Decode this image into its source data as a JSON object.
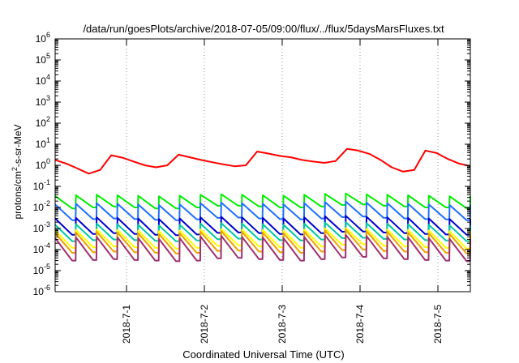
{
  "chart_data": {
    "type": "line",
    "title": "/data/run/goesPlots/archive/2018-07-05/09:00/flux/../flux/5daysMarsFluxes.txt",
    "xlabel": "Coordinated Universal Time (UTC)",
    "ylabel_main": "protons/cm",
    "ylabel_sup": "2",
    "ylabel_rest": "-s-sr-MeV",
    "yscale": "log",
    "ylim_exp": [
      -6,
      6
    ],
    "y_ticks": [
      {
        "base": "10",
        "exp": "6",
        "e": 6
      },
      {
        "base": "10",
        "exp": "5",
        "e": 5
      },
      {
        "base": "10",
        "exp": "4",
        "e": 4
      },
      {
        "base": "10",
        "exp": "3",
        "e": 3
      },
      {
        "base": "10",
        "exp": "2",
        "e": 2
      },
      {
        "base": "10",
        "exp": "1",
        "e": 1
      },
      {
        "base": "10",
        "exp": "0",
        "e": 0
      },
      {
        "base": "10",
        "exp": "-1",
        "e": -1
      },
      {
        "base": "10",
        "exp": "-2",
        "e": -2
      },
      {
        "base": "10",
        "exp": "-3",
        "e": -3
      },
      {
        "base": "10",
        "exp": "-4",
        "e": -4
      },
      {
        "base": "10",
        "exp": "-5",
        "e": -5
      },
      {
        "base": "10",
        "exp": "-6",
        "e": -6
      }
    ],
    "xlim": [
      "2018-06-30T02:00",
      "2018-07-05T10:00"
    ],
    "x_ticks": [
      {
        "label": "2018-7-1",
        "t": "2018-07-01T00:00"
      },
      {
        "label": "2018-7-2",
        "t": "2018-07-02T00:00"
      },
      {
        "label": "2018-7-3",
        "t": "2018-07-03T00:00"
      },
      {
        "label": "2018-7-4",
        "t": "2018-07-04T00:00"
      },
      {
        "label": "2018-7-5",
        "t": "2018-07-05T00:00"
      }
    ],
    "grid": "vertical-at-date-ticks",
    "legend": "none",
    "series": [
      {
        "color": "#ff0000",
        "pattern": "smooth",
        "values": [
          1.8,
          1.2,
          0.7,
          0.4,
          0.6,
          3.0,
          2.3,
          1.5,
          1.0,
          0.8,
          1.0,
          3.2,
          2.4,
          1.8,
          1.4,
          1.1,
          0.9,
          1.0,
          4.5,
          3.6,
          2.8,
          2.4,
          1.8,
          1.5,
          1.3,
          1.6,
          6.0,
          5.0,
          3.5,
          1.8,
          0.8,
          0.5,
          0.6,
          5.0,
          3.8,
          2.0,
          1.2,
          0.9
        ]
      },
      {
        "color": "#00ee00",
        "pattern": "sawtooth",
        "peaks": [
          0.035,
          0.038,
          0.04,
          0.038,
          0.036,
          0.034,
          0.036,
          0.04,
          0.042,
          0.04,
          0.038,
          0.036,
          0.04,
          0.044,
          0.046,
          0.042,
          0.04,
          0.038,
          0.036,
          0.034
        ],
        "troughs": [
          0.009,
          0.01,
          0.011,
          0.01,
          0.009,
          0.009,
          0.01,
          0.012,
          0.012,
          0.011,
          0.01,
          0.01,
          0.011,
          0.013,
          0.014,
          0.012,
          0.011,
          0.01,
          0.01,
          0.009
        ]
      },
      {
        "color": "#1f6fff",
        "pattern": "sawtooth",
        "peaks": [
          0.014,
          0.015,
          0.016,
          0.015,
          0.014,
          0.013,
          0.014,
          0.016,
          0.017,
          0.016,
          0.015,
          0.014,
          0.016,
          0.018,
          0.019,
          0.017,
          0.016,
          0.015,
          0.014,
          0.013
        ],
        "troughs": [
          0.0025,
          0.0028,
          0.003,
          0.0028,
          0.0026,
          0.0025,
          0.0027,
          0.0032,
          0.0033,
          0.003,
          0.0028,
          0.0027,
          0.003,
          0.0035,
          0.0037,
          0.0032,
          0.003,
          0.0028,
          0.0027,
          0.0025
        ]
      },
      {
        "color": "#0000cc",
        "pattern": "sawtooth",
        "peaks": [
          0.003,
          0.0032,
          0.0034,
          0.0032,
          0.003,
          0.0028,
          0.003,
          0.0034,
          0.0036,
          0.0034,
          0.0032,
          0.003,
          0.0034,
          0.0038,
          0.004,
          0.0036,
          0.0034,
          0.0032,
          0.003,
          0.0028
        ],
        "troughs": [
          0.0005,
          0.00055,
          0.0006,
          0.00055,
          0.0005,
          0.00048,
          0.00052,
          0.00062,
          0.00065,
          0.0006,
          0.00055,
          0.00052,
          0.0006,
          0.0007,
          0.00072,
          0.00064,
          0.0006,
          0.00055,
          0.00052,
          0.0005
        ]
      },
      {
        "color": "#00c8a0",
        "pattern": "sawtooth",
        "peaks": [
          0.0015,
          0.0016,
          0.0017,
          0.0016,
          0.0015,
          0.0014,
          0.0015,
          0.0017,
          0.0018,
          0.0017,
          0.0016,
          0.0015,
          0.0017,
          0.0019,
          0.002,
          0.0018,
          0.0017,
          0.0016,
          0.0015,
          0.0014
        ],
        "troughs": [
          0.00025,
          0.00028,
          0.0003,
          0.00028,
          0.00026,
          0.00025,
          0.00027,
          0.00031,
          0.00033,
          0.0003,
          0.00028,
          0.00027,
          0.0003,
          0.00035,
          0.00036,
          0.00032,
          0.0003,
          0.00028,
          0.00027,
          0.00025
        ]
      },
      {
        "color": "#ffff00",
        "pattern": "sawtooth",
        "peaks": [
          0.0008,
          0.00085,
          0.0009,
          0.00085,
          0.0008,
          0.00075,
          0.0008,
          0.0009,
          0.00095,
          0.0009,
          0.00085,
          0.0008,
          0.0009,
          0.001,
          0.00105,
          0.00095,
          0.0009,
          0.00085,
          0.0008,
          0.00075
        ],
        "troughs": [
          0.00012,
          0.00013,
          0.00014,
          0.00013,
          0.00012,
          0.00011,
          0.00012,
          0.00015,
          0.00016,
          0.00014,
          0.00013,
          0.00012,
          0.00014,
          0.00017,
          0.00018,
          0.00015,
          0.00014,
          0.00013,
          0.00012,
          0.00011
        ]
      },
      {
        "color": "#f0a000",
        "pattern": "sawtooth",
        "peaks": [
          0.0006,
          0.00065,
          0.0007,
          0.00065,
          0.0006,
          0.00055,
          0.0006,
          0.0007,
          0.00075,
          0.0007,
          0.00065,
          0.0006,
          0.0007,
          0.0008,
          0.00085,
          0.00075,
          0.0007,
          0.00065,
          0.0006,
          0.00055
        ],
        "troughs": [
          7e-05,
          7.5e-05,
          8e-05,
          7.5e-05,
          7e-05,
          6.5e-05,
          7e-05,
          8.5e-05,
          9e-05,
          8e-05,
          7.5e-05,
          7e-05,
          8e-05,
          9.5e-05,
          0.0001,
          8.5e-05,
          8e-05,
          7.5e-05,
          7e-05,
          6.5e-05
        ]
      },
      {
        "color": "#a03070",
        "pattern": "sawtooth",
        "peaks": [
          0.00035,
          0.00038,
          0.0004,
          0.00038,
          0.00035,
          0.00032,
          0.00035,
          0.00042,
          0.00045,
          0.0004,
          0.00038,
          0.00035,
          0.0004,
          0.00048,
          0.0005,
          0.00044,
          0.0004,
          0.00038,
          0.00035,
          0.00032
        ],
        "troughs": [
          3e-05,
          3.2e-05,
          3.5e-05,
          3.2e-05,
          3e-05,
          2.8e-05,
          3e-05,
          3.8e-05,
          4e-05,
          3.5e-05,
          3.2e-05,
          3e-05,
          3.5e-05,
          4.2e-05,
          4.5e-05,
          3.8e-05,
          3.5e-05,
          3.2e-05,
          3e-05,
          2.8e-05
        ]
      }
    ]
  }
}
